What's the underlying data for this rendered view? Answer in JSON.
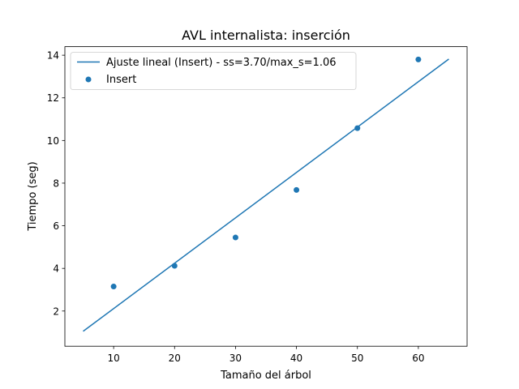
{
  "chart_data": {
    "type": "scatter",
    "title": "AVL internalista: inserción",
    "xlabel": "Tamaño del árbol",
    "ylabel": "Tiempo (seg)",
    "xlim": [
      2,
      68
    ],
    "ylim": [
      0.35,
      14.4
    ],
    "xticks": [
      "10",
      "20",
      "30",
      "40",
      "50",
      "60"
    ],
    "yticks": [
      "2",
      "4",
      "6",
      "8",
      "10",
      "12",
      "14"
    ],
    "grid": false,
    "legend_position": "top-left",
    "points": {
      "name": "Insert",
      "color": "#1f77b4",
      "x": [
        10,
        20,
        30,
        40,
        50,
        60
      ],
      "y": [
        3.15,
        4.12,
        5.45,
        7.68,
        10.58,
        13.8
      ]
    },
    "fit_line": {
      "name": "Ajuste lineal (Insert) - ss=3.70/max_s=1.06",
      "color": "#1f77b4",
      "x": [
        5,
        65
      ],
      "y": [
        1.05,
        13.82
      ]
    }
  }
}
